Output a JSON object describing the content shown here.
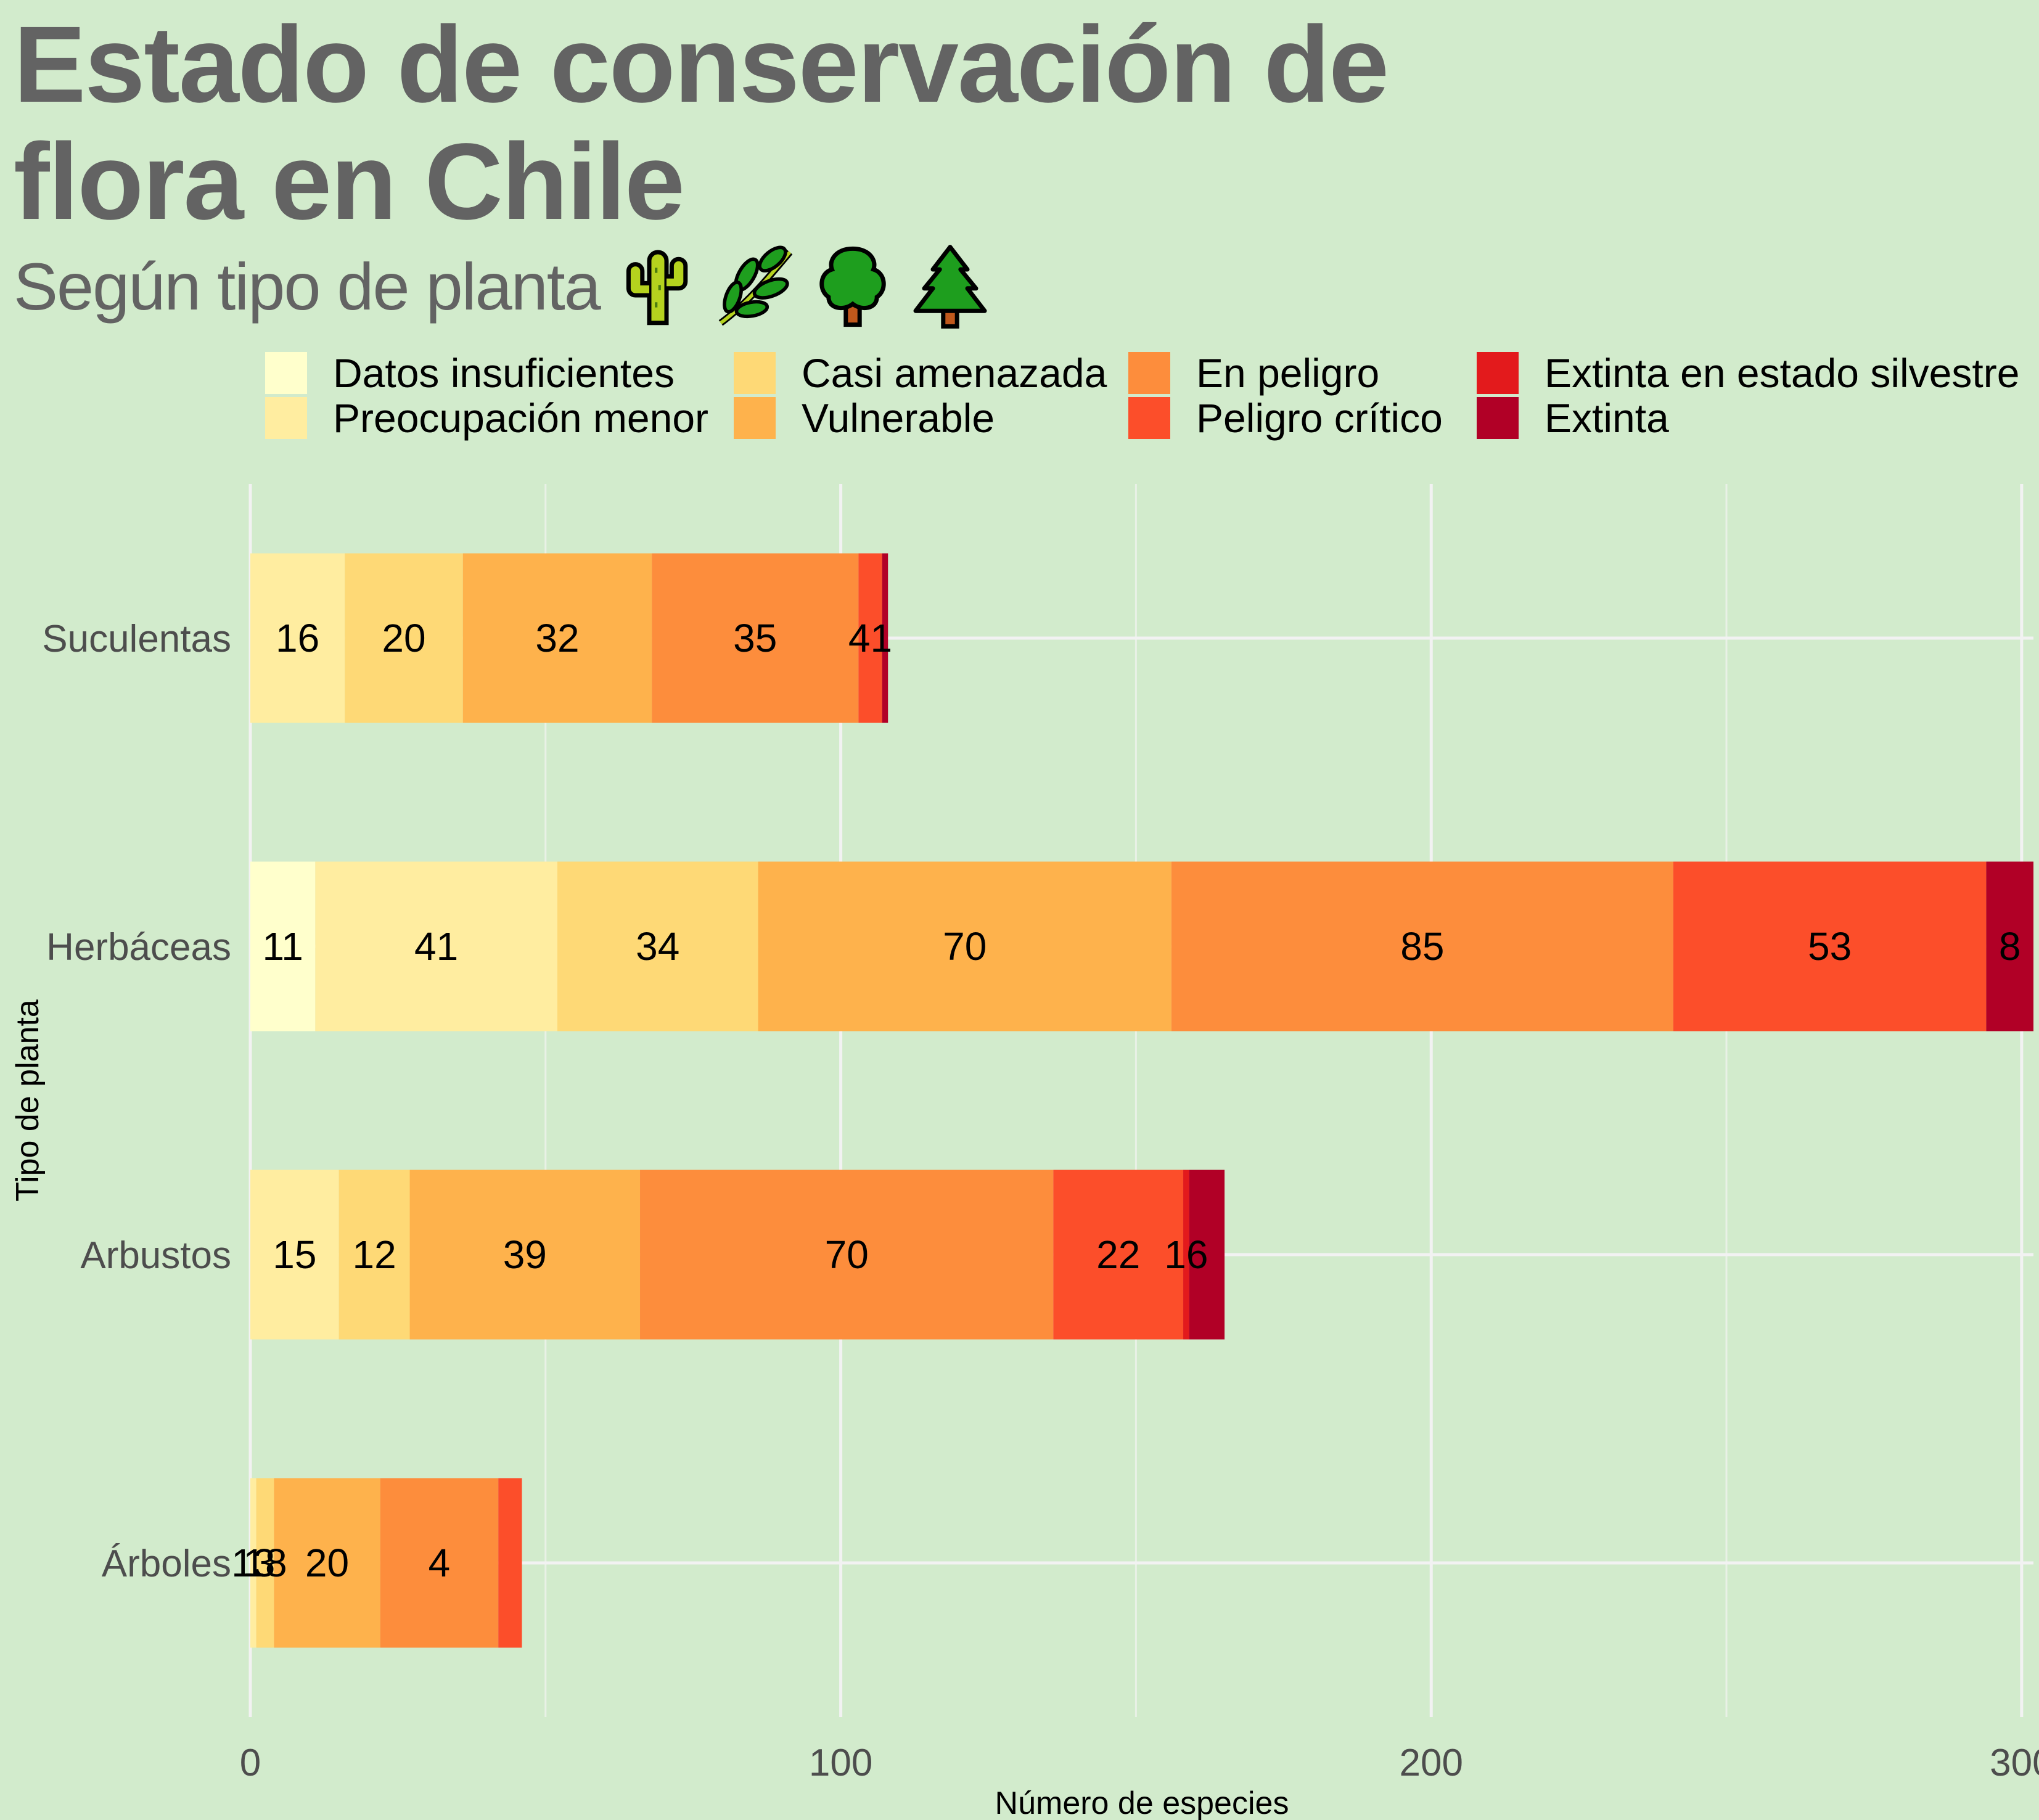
{
  "chart_data": {
    "type": "bar",
    "orientation": "horizontal",
    "stacked": true,
    "title": "Estado de conservación de flora en Chile",
    "subtitle": "Según tipo de planta",
    "subtitle_icons": [
      "cactus-icon",
      "herb-icon",
      "deciduous-tree-icon",
      "evergreen-tree-icon"
    ],
    "xlabel": "Número de especies",
    "ylabel": "Tipo de planta",
    "xlim": [
      0,
      302
    ],
    "xticks": [
      0,
      100,
      200,
      300
    ],
    "grid": true,
    "legend_position": "top",
    "categories": [
      "Suculentas",
      "Herbáceas",
      "Arbustos",
      "Árboles"
    ],
    "series": [
      {
        "name": "Datos insuficientes",
        "color": "#ffffcc",
        "values": [
          0,
          11,
          0,
          0
        ]
      },
      {
        "name": "Preocupación menor",
        "color": "#ffeda0",
        "values": [
          16,
          41,
          15,
          1
        ]
      },
      {
        "name": "Casi amenazada",
        "color": "#fed976",
        "values": [
          20,
          34,
          12,
          3
        ]
      },
      {
        "name": "Vulnerable",
        "color": "#feb24c",
        "values": [
          32,
          70,
          39,
          18
        ]
      },
      {
        "name": "En peligro",
        "color": "#fd8d3c",
        "values": [
          35,
          85,
          70,
          20
        ]
      },
      {
        "name": "Peligro crítico",
        "color": "#fc4e2a",
        "values": [
          4,
          53,
          22,
          4
        ]
      },
      {
        "name": "Extinta en estado silvestre",
        "color": "#e31a1c",
        "values": [
          0,
          0,
          1,
          0
        ]
      },
      {
        "name": "Extinta",
        "color": "#b10026",
        "values": [
          1,
          8,
          6,
          0
        ]
      }
    ],
    "data_labels": [
      [
        "16",
        "20",
        "32",
        "35",
        "41"
      ],
      [
        "11",
        "41",
        "34",
        "70",
        "85",
        "53",
        "8"
      ],
      [
        "15",
        "12",
        "39",
        "70",
        "22",
        "16"
      ],
      [
        "13",
        "18",
        "20",
        "4"
      ]
    ]
  }
}
